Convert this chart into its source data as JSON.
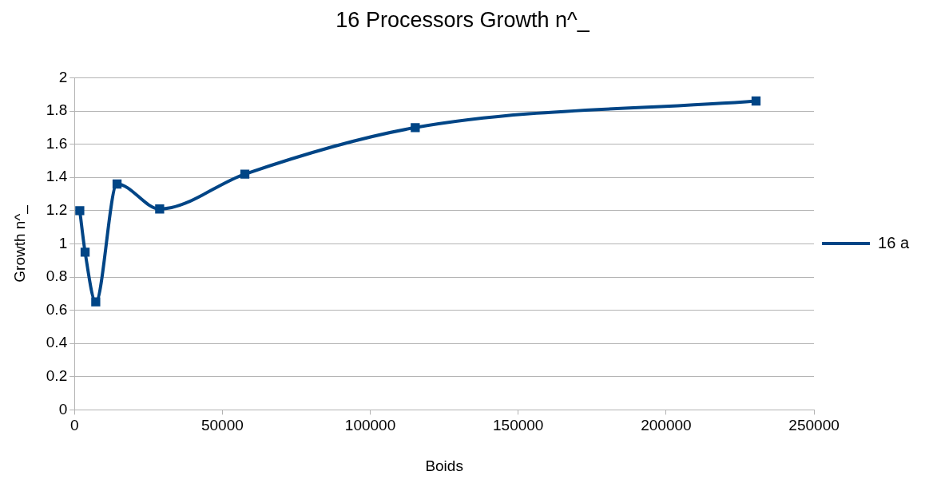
{
  "chart_data": {
    "type": "line",
    "title": "16 Processors Growth n^_",
    "xlabel": "Boids",
    "ylabel": "Growth n^_",
    "x": [
      1800,
      3600,
      7200,
      14400,
      28800,
      57600,
      115200,
      230400
    ],
    "series": [
      {
        "name": "16 a",
        "color": "#004586",
        "values": [
          1.2,
          0.95,
          0.65,
          1.36,
          1.21,
          1.42,
          1.7,
          1.86
        ]
      }
    ],
    "xlim": [
      0,
      250000
    ],
    "xticks": [
      0,
      50000,
      100000,
      150000,
      200000,
      250000
    ],
    "ylim": [
      0,
      2
    ],
    "yticks": [
      0,
      0.2,
      0.4,
      0.6,
      0.8,
      1,
      1.2,
      1.4,
      1.6,
      1.8,
      2
    ],
    "grid": "y",
    "legend": "right",
    "marker": "square",
    "line_style": "solid"
  }
}
